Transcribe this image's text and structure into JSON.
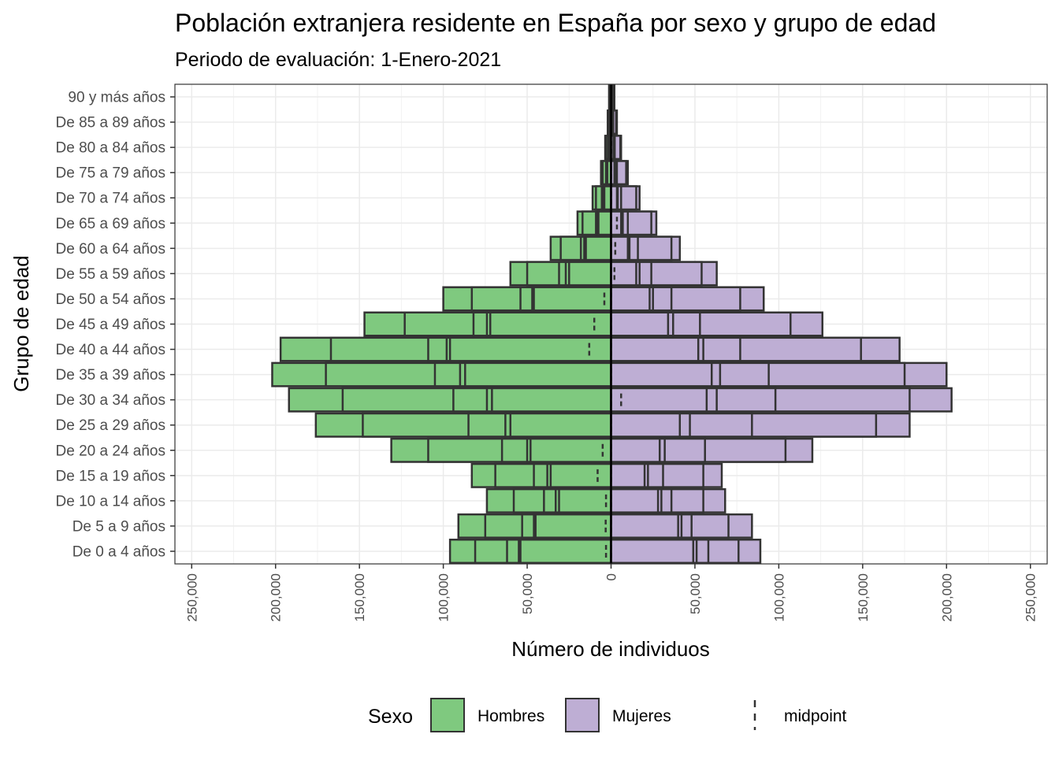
{
  "chart_data": {
    "type": "bar",
    "orientation": "horizontal",
    "title": "Población extranjera residente en España por sexo y grupo de edad",
    "subtitle": "Periodo de evaluación: 1-Enero-2021",
    "xlabel": "Número de individuos",
    "ylabel": "Grupo de edad",
    "xlim": [
      -260000,
      260000
    ],
    "xticks": [
      -250000,
      -200000,
      -150000,
      -100000,
      -50000,
      0,
      50000,
      100000,
      150000,
      200000,
      250000
    ],
    "xtick_labels": [
      "250,000",
      "200,000",
      "150,000",
      "100,000",
      "50,000",
      "0",
      "50,000",
      "100,000",
      "150,000",
      "200,000",
      "250,000"
    ],
    "grid": true,
    "legend_position": "bottom",
    "legend_title": "Sexo",
    "categories": [
      "De 0 a 4 años",
      "De 5 a 9 años",
      "De 10 a 14 años",
      "De 15 a 19 años",
      "De 20 a 24 años",
      "De 25 a 29 años",
      "De 30 a 34 años",
      "De 35 a 39 años",
      "De 40 a 44 años",
      "De 45 a 49 años",
      "De 50 a 54 años",
      "De 55 a 59 años",
      "De 60 a 64 años",
      "De 65 a 69 años",
      "De 70 a 74 años",
      "De 75 a 79 años",
      "De 80 a 84 años",
      "De 85 a 89 años",
      "90 y más años"
    ],
    "series": [
      {
        "name": "Hombres",
        "color": "#7fc97f",
        "segment_bounds": [
          [
            96000,
            81000,
            62000,
            55000,
            54000
          ],
          [
            91000,
            75000,
            53000,
            46000,
            45000
          ],
          [
            74000,
            58000,
            40000,
            33000,
            31000
          ],
          [
            83000,
            69000,
            46000,
            38000,
            36000
          ],
          [
            131000,
            109000,
            65000,
            50000,
            48000
          ],
          [
            176000,
            148000,
            85000,
            63000,
            60000
          ],
          [
            192000,
            160000,
            94000,
            74000,
            71000
          ],
          [
            202000,
            170000,
            105000,
            90000,
            87000
          ],
          [
            197000,
            167000,
            109000,
            98000,
            96000
          ],
          [
            147000,
            123000,
            82000,
            74000,
            72000
          ],
          [
            100000,
            83000,
            54000,
            47000,
            46000
          ],
          [
            60000,
            50000,
            31000,
            27000,
            25000
          ],
          [
            36000,
            30000,
            18000,
            16000,
            15000
          ],
          [
            20000,
            17000,
            9000,
            8000,
            7500
          ],
          [
            11000,
            9000,
            5500,
            4500,
            4000
          ],
          [
            6000,
            5000,
            3000,
            2500,
            2200
          ],
          [
            3500,
            3000,
            1800,
            1500,
            1300
          ],
          [
            2000,
            1700,
            1000,
            800,
            700
          ],
          [
            1200,
            1000,
            600,
            500,
            400
          ]
        ],
        "midpoints": [
          3000,
          3200,
          3000,
          8000,
          5000,
          0,
          0,
          0,
          13000,
          10000,
          4000,
          0,
          0,
          0,
          0,
          0,
          0,
          0,
          0
        ]
      },
      {
        "name": "Mujeres",
        "color": "#beaed4",
        "segment_bounds": [
          [
            89000,
            76000,
            58000,
            51000,
            49000
          ],
          [
            84000,
            70000,
            48000,
            42000,
            40000
          ],
          [
            68000,
            55000,
            36000,
            30000,
            28000
          ],
          [
            66000,
            55000,
            31000,
            22000,
            20000
          ],
          [
            120000,
            104000,
            56000,
            32000,
            29000
          ],
          [
            178000,
            158000,
            84000,
            47000,
            41000
          ],
          [
            203000,
            178000,
            98000,
            63000,
            57000
          ],
          [
            200000,
            175000,
            94000,
            65000,
            60000
          ],
          [
            172000,
            149000,
            77000,
            55000,
            52000
          ],
          [
            126000,
            107000,
            53000,
            37000,
            34000
          ],
          [
            91000,
            77000,
            36000,
            25000,
            23000
          ],
          [
            63000,
            54000,
            24000,
            17000,
            15000
          ],
          [
            41000,
            36000,
            16000,
            11000,
            10000
          ],
          [
            27000,
            24000,
            10000,
            7000,
            6000
          ],
          [
            17000,
            15000,
            6000,
            4000,
            3500
          ],
          [
            10000,
            9000,
            3500,
            2500,
            2000
          ],
          [
            6000,
            5500,
            2200,
            1600,
            1400
          ],
          [
            3500,
            3000,
            1300,
            900,
            800
          ],
          [
            2000,
            1700,
            700,
            500,
            400
          ]
        ],
        "midpoints": [
          0,
          0,
          0,
          0,
          0,
          0,
          6000,
          0,
          0,
          0,
          0,
          2000,
          2500,
          3500,
          0,
          0,
          0,
          0,
          0
        ]
      }
    ],
    "legend": {
      "items": [
        {
          "label": "Hombres",
          "color": "#7fc97f"
        },
        {
          "label": "Mujeres",
          "color": "#beaed4"
        },
        {
          "label": "midpoint",
          "symbol": "dashed-vertical-line"
        }
      ]
    }
  }
}
